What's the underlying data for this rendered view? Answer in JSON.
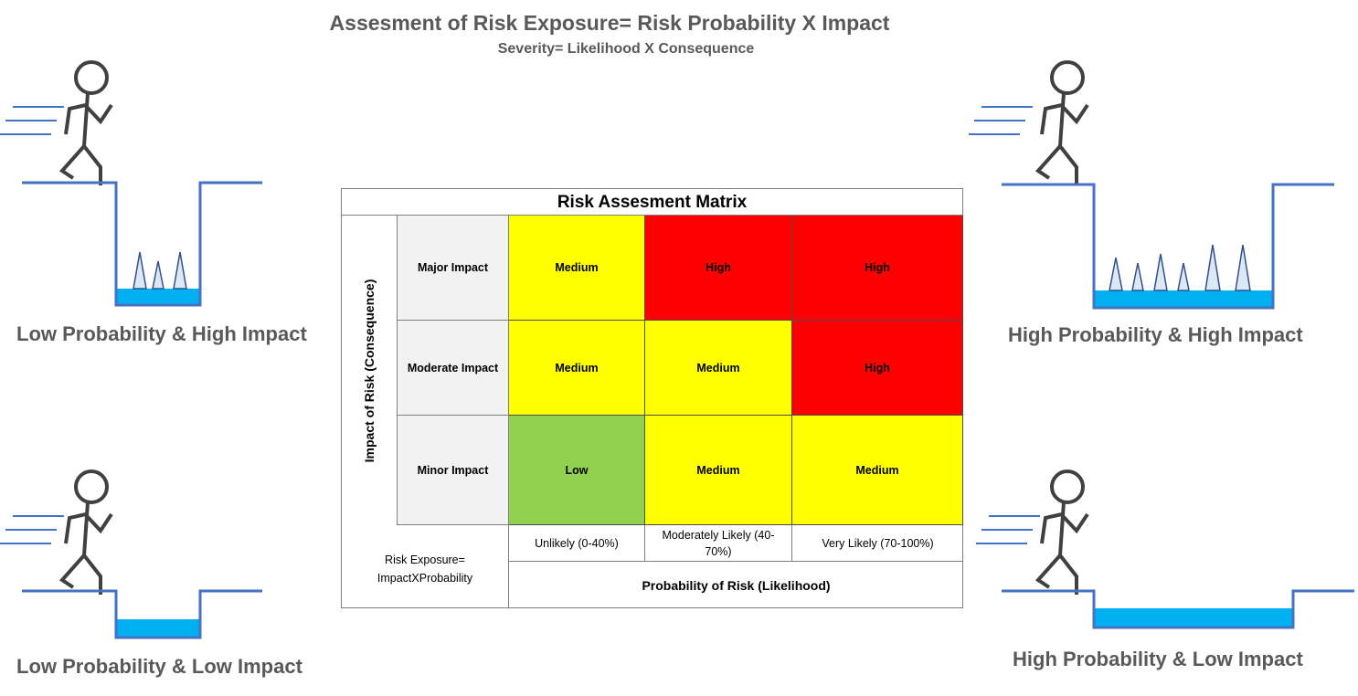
{
  "header": {
    "title": "Assesment of Risk Exposure= Risk Probability X Impact",
    "subtitle": "Severity= Likelihood X Consequence"
  },
  "scenes": {
    "top_left": "Low Probability & High Impact",
    "top_right": "High Probability & High Impact",
    "bottom_left": "Low Probability & Low Impact",
    "bottom_right": "High Probability & Low Impact"
  },
  "matrix": {
    "title": "Risk Assesment Matrix",
    "y_axis_label": "Impact of Risk (Consequence)",
    "x_axis_label": "Probability of Risk (Likelihood)",
    "corner_label": "Risk Exposure= ImpactXProbability",
    "rows": [
      "Major Impact",
      "Moderate Impact",
      "Minor Impact"
    ],
    "columns": [
      "Unlikely (0-40%)",
      "Moderately Likely (40-70%)",
      "Very Likely (70-100%)"
    ],
    "cells": [
      [
        "Medium",
        "High",
        "High"
      ],
      [
        "Medium",
        "Medium",
        "High"
      ],
      [
        "Low",
        "Medium",
        "Medium"
      ]
    ],
    "colors": {
      "Low": "#92d050",
      "Medium": "#ffff00",
      "High": "#ff0000"
    }
  }
}
